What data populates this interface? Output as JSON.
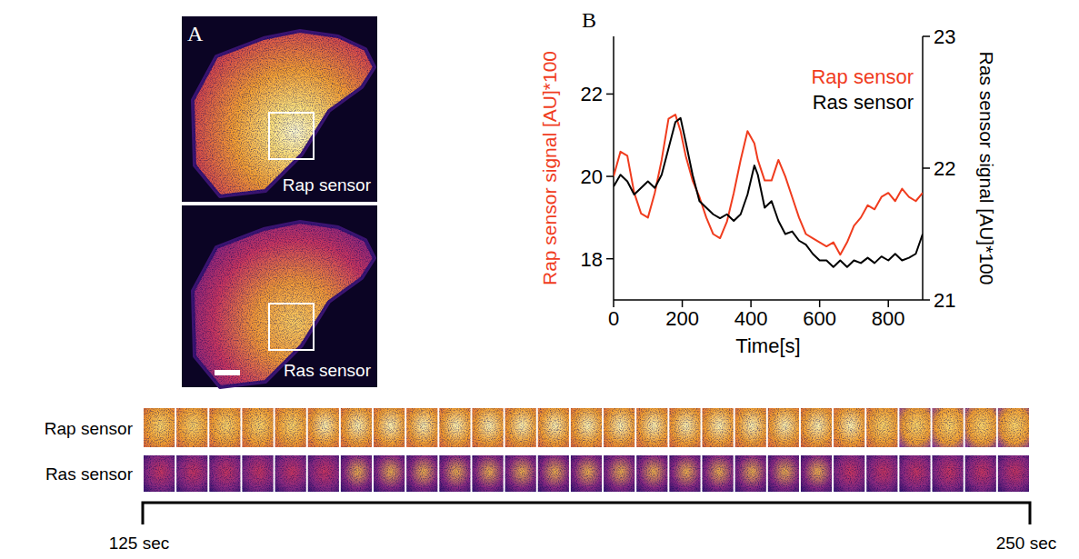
{
  "panel_a": {
    "label": "A",
    "images": [
      {
        "caption": "Rap sensor"
      },
      {
        "caption": "Ras sensor"
      }
    ]
  },
  "chart_data": {
    "type": "line",
    "panel_label": "B",
    "x_label": "Time[s]",
    "y_label": "Rap sensor signal [AU]*100",
    "y2_label": "Ras sensor signal [AU]*100",
    "x": [
      0,
      20,
      40,
      60,
      80,
      100,
      120,
      140,
      160,
      180,
      195,
      210,
      230,
      250,
      270,
      290,
      310,
      330,
      350,
      370,
      390,
      410,
      420,
      440,
      460,
      480,
      500,
      520,
      540,
      560,
      580,
      600,
      620,
      640,
      660,
      680,
      700,
      720,
      740,
      760,
      780,
      800,
      820,
      840,
      860,
      880,
      900
    ],
    "series": [
      {
        "name": "Rap sensor",
        "color": "#f03c1e",
        "values": [
          20.0,
          20.6,
          20.5,
          19.6,
          19.1,
          19.0,
          19.6,
          20.4,
          21.4,
          21.5,
          21.1,
          20.5,
          19.9,
          19.5,
          19.0,
          18.6,
          18.5,
          18.9,
          19.6,
          20.4,
          21.1,
          20.8,
          20.4,
          19.9,
          19.9,
          20.4,
          20.0,
          19.5,
          19.0,
          18.6,
          18.5,
          18.4,
          18.3,
          18.4,
          18.1,
          18.4,
          18.8,
          19.0,
          19.3,
          19.2,
          19.5,
          19.6,
          19.4,
          19.7,
          19.5,
          19.4,
          19.6
        ]
      },
      {
        "name": "Ras sensor",
        "color": "#000000",
        "axis": "y2",
        "values": [
          21.86,
          21.95,
          21.9,
          21.8,
          21.85,
          21.9,
          21.85,
          21.95,
          22.15,
          22.35,
          22.38,
          22.2,
          21.95,
          21.75,
          21.7,
          21.65,
          21.62,
          21.65,
          21.6,
          21.65,
          21.8,
          22.02,
          21.95,
          21.7,
          21.75,
          21.6,
          21.5,
          21.52,
          21.45,
          21.42,
          21.35,
          21.3,
          21.3,
          21.25,
          21.3,
          21.25,
          21.3,
          21.28,
          21.32,
          21.28,
          21.33,
          21.3,
          21.35,
          21.3,
          21.32,
          21.35,
          21.5
        ]
      }
    ],
    "xlim": [
      0,
      900
    ],
    "xticks": [
      0,
      200,
      400,
      600,
      800
    ],
    "ylim": [
      17,
      23.4
    ],
    "yticks": [
      18,
      20,
      22
    ],
    "y2lim": [
      21,
      23
    ],
    "y2ticks": [
      21,
      22,
      23
    ],
    "legend": "upper right",
    "grid": false
  },
  "montage": {
    "rows": [
      "Rap sensor",
      "Ras sensor"
    ],
    "start": "125 sec",
    "end": "250 sec"
  }
}
